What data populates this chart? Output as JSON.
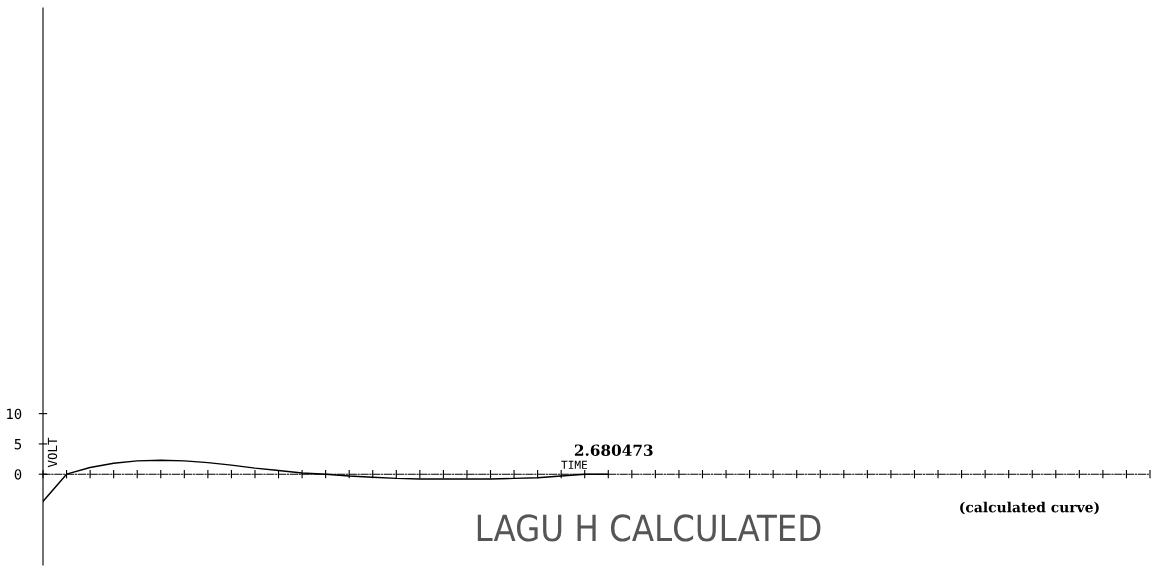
{
  "chart_data": {
    "type": "line",
    "title": "LAGU H CALCULATED",
    "xlabel": "TIME",
    "ylabel": "VOLT",
    "annotations": [
      "2.680473",
      "(calculated curve)"
    ],
    "categories": [
      null,
      null,
      null,
      null,
      null,
      null,
      null,
      null,
      null,
      null,
      null,
      null,
      null,
      null,
      null,
      null,
      null,
      null,
      null,
      null,
      null,
      null,
      null,
      null,
      null,
      null,
      null,
      null,
      null,
      null,
      null,
      null,
      null,
      null,
      null,
      null,
      null,
      null,
      null,
      null,
      null,
      null,
      null,
      null,
      null,
      null,
      null,
      null
    ],
    "series": [
      {
        "color": "#000000",
        "values": [
          -4.5,
          0,
          1.1,
          1.8,
          2.2,
          2.3,
          2.2,
          1.9,
          1.5,
          1.0,
          0.6,
          0.2,
          0,
          -0.3,
          -0.5,
          -0.7,
          -0.8,
          -0.8,
          -0.8,
          -0.8,
          -0.7,
          -0.6,
          -0.3,
          0,
          0,
          null,
          null,
          null,
          null,
          null,
          null,
          null,
          null,
          null,
          null,
          null,
          null,
          null,
          null,
          null,
          null,
          null,
          null,
          null,
          null,
          null,
          null,
          null
        ]
      }
    ],
    "ylim": [
      -15,
      77
    ],
    "yticks": [
      0,
      5,
      10
    ],
    "marker": "none",
    "line_style": "solid",
    "legend": false
  }
}
